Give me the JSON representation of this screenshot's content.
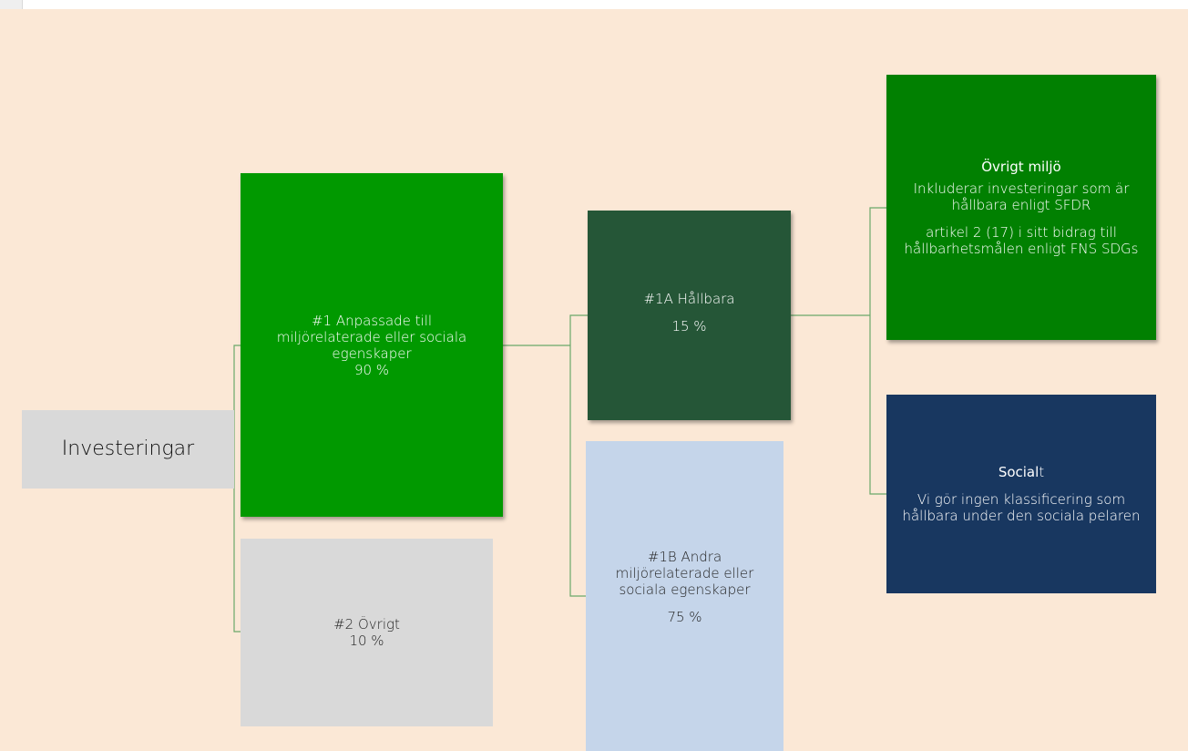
{
  "colors": {
    "background": "#fbe8d6",
    "connector": "#6aa86a",
    "box_root": "#d9d9d9",
    "box_aligned": "#019900",
    "box_other": "#d9d9d9",
    "box_sustainable": "#255637",
    "box_other_characteristics": "#c5d5ea",
    "box_environment": "#018001",
    "box_social": "#183760"
  },
  "nodes": {
    "root": {
      "label": "Investeringar"
    },
    "aligned": {
      "line1": "#1 Anpassade till",
      "line2": "miljörelaterade eller sociala",
      "line3": "egenskaper",
      "percent": "90 %"
    },
    "other": {
      "label": "#2 Övrigt",
      "percent": "10 %"
    },
    "sustainable": {
      "label": "#1A Hållbara",
      "percent": "15 %"
    },
    "other_characteristics": {
      "line1": "#1B Andra",
      "line2": "miljörelaterade eller",
      "line3": "sociala egenskaper",
      "percent": "75 %"
    },
    "environment": {
      "title": "Övrigt miljö",
      "line1": "Inkluderar investeringar som är",
      "line2": "hållbara enligt SFDR",
      "line3": "artikel 2 (17) i sitt bidrag till",
      "line4": "hållbarhetsmålen enligt FNS SDGs"
    },
    "social": {
      "title_bold": "Social",
      "title_rest": "t",
      "line1": "Vi gör ingen klassificering som",
      "line2": "hållbara under den sociala pelaren"
    }
  }
}
